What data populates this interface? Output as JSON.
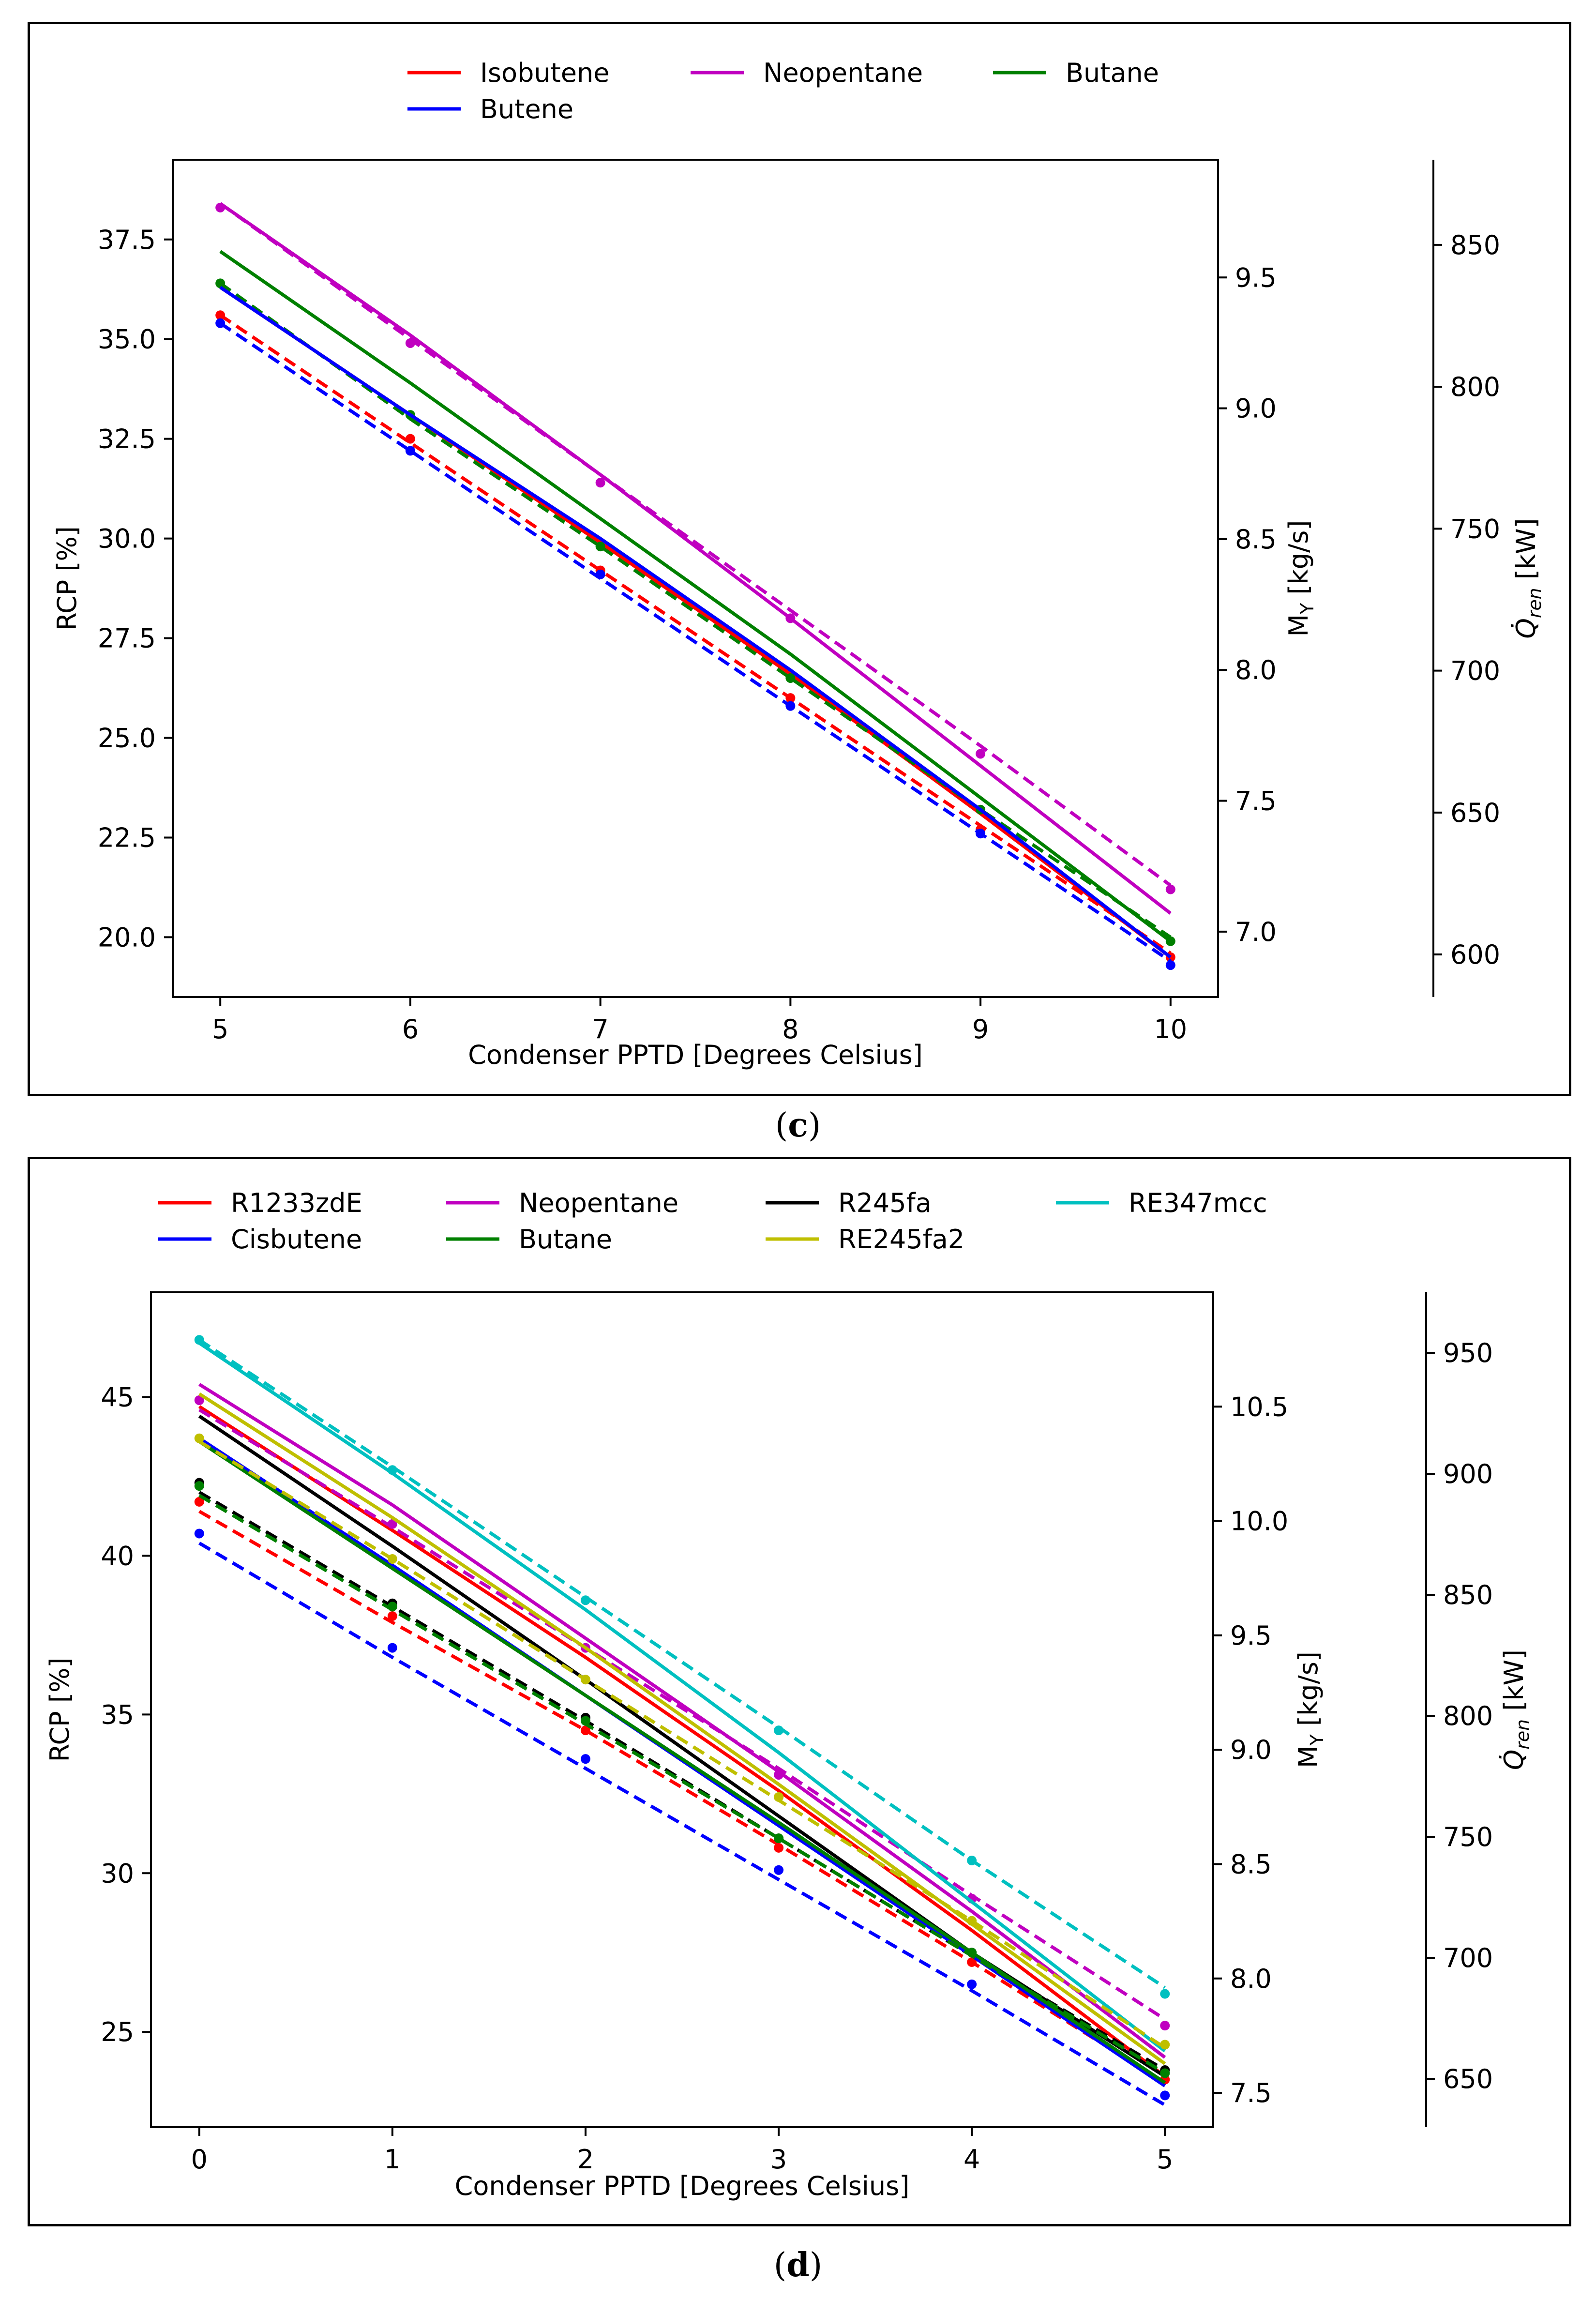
{
  "chart_data": [
    {
      "type": "line",
      "panel_label": "c",
      "xlabel": "Condenser PPTD [Degrees Celsius]",
      "ylabel": "RCP [%]",
      "y2label": "M_Y [kg/s]",
      "y3label": "Q_ren [kW]",
      "x": [
        5,
        6,
        7,
        8,
        9,
        10
      ],
      "xlim": [
        4.75,
        10.25
      ],
      "ylim": [
        18.5,
        39.5
      ],
      "y2lim": [
        6.75,
        9.95
      ],
      "y3lim": [
        585,
        880
      ],
      "xticks": [
        "5",
        "6",
        "7",
        "8",
        "9",
        "10"
      ],
      "yticks": [
        "20.0",
        "22.5",
        "25.0",
        "27.5",
        "30.0",
        "32.5",
        "35.0",
        "37.5"
      ],
      "y2ticks": [
        "7.0",
        "7.5",
        "8.0",
        "8.5",
        "9.0",
        "9.5"
      ],
      "y3ticks": [
        "600",
        "650",
        "700",
        "750",
        "800",
        "850"
      ],
      "legend": [
        "Isobutene",
        "Neopentane",
        "Butane",
        "Butene"
      ],
      "series": [
        {
          "name": "Isobutene",
          "color": "#ff0000",
          "solid": [
            36.3,
            33.1,
            29.9,
            26.6,
            23.1,
            19.5
          ],
          "dashed": [
            35.6,
            32.4,
            29.2,
            26.0,
            22.8,
            19.6
          ],
          "points": [
            35.6,
            32.5,
            29.2,
            26.0,
            22.7,
            19.5
          ]
        },
        {
          "name": "Neopentane",
          "color": "#c000c0",
          "solid": [
            38.4,
            35.1,
            31.6,
            28.0,
            24.3,
            20.6
          ],
          "dashed": [
            38.4,
            35.0,
            31.6,
            28.2,
            24.8,
            21.3
          ],
          "points": [
            38.3,
            34.9,
            31.4,
            28.0,
            24.6,
            21.2
          ]
        },
        {
          "name": "Butane",
          "color": "#008000",
          "solid": [
            37.2,
            33.9,
            30.5,
            27.1,
            23.5,
            19.9
          ],
          "dashed": [
            36.4,
            33.0,
            29.8,
            26.5,
            23.2,
            20.0
          ],
          "points": [
            36.4,
            33.1,
            29.8,
            26.5,
            23.2,
            19.9
          ]
        },
        {
          "name": "Butene",
          "color": "#0000ff",
          "solid": [
            36.3,
            33.1,
            30.0,
            26.7,
            23.2,
            19.5
          ],
          "dashed": [
            35.4,
            32.2,
            29.0,
            25.8,
            22.6,
            19.4
          ],
          "points": [
            35.4,
            32.2,
            29.1,
            25.8,
            22.6,
            19.3
          ]
        }
      ]
    },
    {
      "type": "line",
      "panel_label": "d",
      "xlabel": "Condenser PPTD [Degrees Celsius]",
      "ylabel": "RCP [%]",
      "y2label": "M_Y [kg/s]",
      "y3label": "Q_ren [kW]",
      "x": [
        0,
        1,
        2,
        3,
        4,
        5
      ],
      "xlim": [
        -0.25,
        5.25
      ],
      "ylim": [
        22.0,
        48.3
      ],
      "y2lim": [
        7.35,
        11.0
      ],
      "y3lim": [
        630,
        975
      ],
      "xticks": [
        "0",
        "1",
        "2",
        "3",
        "4",
        "5"
      ],
      "yticks": [
        "25",
        "30",
        "35",
        "40",
        "45"
      ],
      "y2ticks": [
        "7.5",
        "8.0",
        "8.5",
        "9.0",
        "9.5",
        "10.0",
        "10.5"
      ],
      "y3ticks": [
        "650",
        "700",
        "750",
        "800",
        "850",
        "900",
        "950"
      ],
      "legend": [
        "R1233zdE",
        "Neopentane",
        "R245fa",
        "RE347mcc",
        "Cisbutene",
        "Butane",
        "RE245fa2"
      ],
      "series": [
        {
          "name": "R1233zdE",
          "color": "#ff0000",
          "solid": [
            44.7,
            40.8,
            36.8,
            32.6,
            28.2,
            23.6
          ],
          "dashed": [
            41.4,
            37.9,
            34.5,
            30.9,
            27.2,
            23.4
          ],
          "points": [
            41.7,
            38.1,
            34.5,
            30.8,
            27.2,
            23.5
          ]
        },
        {
          "name": "Neopentane",
          "color": "#c000c0",
          "solid": [
            45.4,
            41.6,
            37.4,
            33.2,
            28.8,
            24.2
          ],
          "dashed": [
            44.6,
            40.9,
            37.1,
            33.3,
            29.3,
            25.4
          ],
          "points": [
            44.9,
            41.0,
            37.1,
            33.1,
            29.2,
            25.2
          ]
        },
        {
          "name": "R245fa",
          "color": "#000000",
          "solid": [
            44.4,
            40.3,
            36.1,
            31.8,
            27.5,
            23.6
          ],
          "dashed": [
            42.0,
            38.4,
            34.8,
            31.1,
            27.4,
            23.8
          ],
          "points": [
            42.3,
            38.5,
            34.9,
            31.1,
            27.5,
            23.8
          ]
        },
        {
          "name": "RE347mcc",
          "color": "#00c0c0",
          "solid": [
            46.7,
            42.6,
            38.3,
            33.8,
            29.1,
            24.4
          ],
          "dashed": [
            46.8,
            42.8,
            38.7,
            34.6,
            30.4,
            26.4
          ],
          "points": [
            46.8,
            42.7,
            38.6,
            34.5,
            30.4,
            26.2
          ]
        },
        {
          "name": "Cisbutene",
          "color": "#0000ff",
          "solid": [
            43.7,
            39.7,
            35.6,
            31.5,
            27.4,
            23.3
          ],
          "dashed": [
            40.4,
            36.8,
            33.3,
            29.8,
            26.3,
            22.7
          ],
          "points": [
            40.7,
            37.1,
            33.6,
            30.1,
            26.5,
            23.0
          ]
        },
        {
          "name": "Butane",
          "color": "#008000",
          "solid": [
            43.6,
            39.6,
            35.6,
            31.6,
            27.5,
            23.4
          ],
          "dashed": [
            41.9,
            38.3,
            34.7,
            31.1,
            27.4,
            23.7
          ],
          "points": [
            42.2,
            38.4,
            34.8,
            31.1,
            27.5,
            23.7
          ]
        },
        {
          "name": "RE245fa2",
          "color": "#bfbf00",
          "solid": [
            45.1,
            41.2,
            37.1,
            32.8,
            28.4,
            24.0
          ],
          "dashed": [
            43.6,
            39.9,
            36.1,
            32.3,
            28.5,
            24.5
          ],
          "points": [
            43.7,
            39.9,
            36.1,
            32.4,
            28.5,
            24.6
          ]
        }
      ]
    }
  ]
}
